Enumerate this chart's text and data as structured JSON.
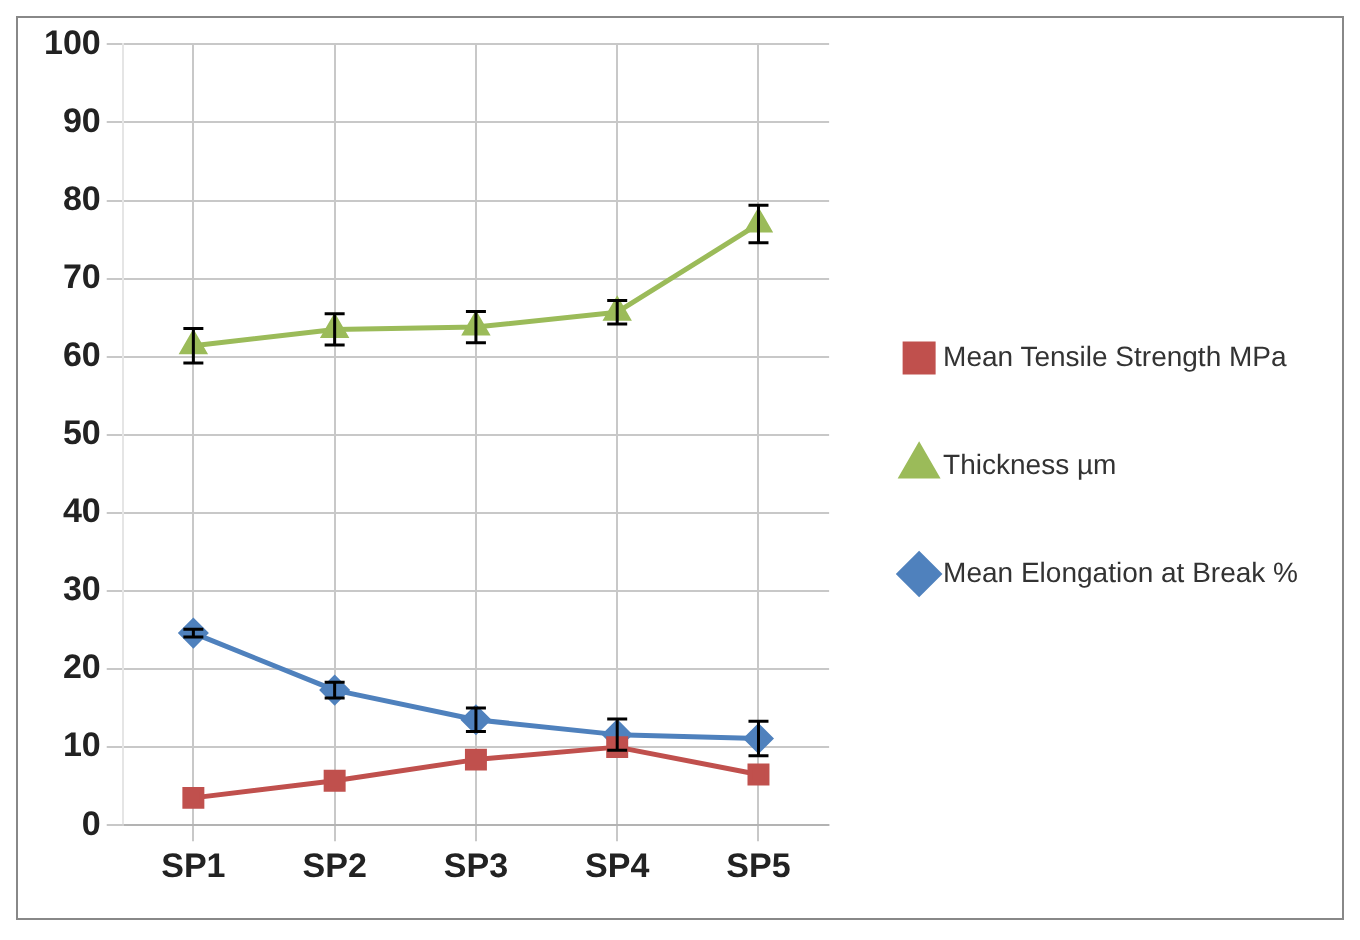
{
  "chart_data": {
    "type": "line",
    "categories": [
      "SP1",
      "SP2",
      "SP3",
      "SP4",
      "SP5"
    ],
    "series": [
      {
        "name": "Mean Tensile Strength MPa",
        "color": "#c0504d",
        "marker": "square",
        "values": [
          3.5,
          5.7,
          8.4,
          10,
          6.5
        ]
      },
      {
        "name": "Thickness µm",
        "color": "#9bbb59",
        "marker": "triangle",
        "values": [
          61.4,
          63.5,
          63.8,
          65.7,
          77
        ],
        "errors": [
          2.2,
          2,
          2,
          1.5,
          2.4
        ]
      },
      {
        "name": "Mean Elongation at Break %",
        "color": "#4f81bd",
        "marker": "diamond",
        "values": [
          24.6,
          17.3,
          13.5,
          11.6,
          11.1
        ],
        "errors": [
          0.5,
          1,
          1.5,
          2,
          2.2
        ]
      }
    ],
    "ylim": [
      0,
      100
    ],
    "yticks": [
      0,
      10,
      20,
      30,
      40,
      50,
      60,
      70,
      80,
      90,
      100
    ],
    "grid": true,
    "legend": "right",
    "line_style": "solid"
  }
}
